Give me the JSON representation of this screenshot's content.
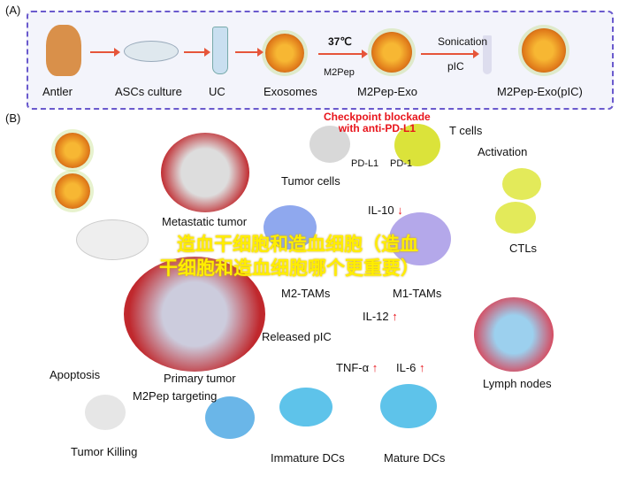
{
  "panel_a": {
    "label": "(A)",
    "steps": [
      "Antler",
      "ASCs culture",
      "UC",
      "Exosomes",
      "M2Pep-Exo",
      "M2Pep-Exo(pIC)"
    ],
    "temp": "37℃",
    "m2pep": "M2Pep",
    "sonication": "Sonication",
    "pic": "pIC"
  },
  "panel_b": {
    "label": "(B)",
    "checkpoint": "Checkpoint blockade\nwith anti-PD-L1",
    "t_cells": "T cells",
    "pdl1": "PD-L1",
    "pd1": "PD-1",
    "tumor_cells": "Tumor cells",
    "activation": "Activation",
    "metastatic": "Metastatic tumor",
    "il10": "IL-10",
    "m2_tams": "M2-TAMs",
    "m1_tams": "M1-TAMs",
    "ctls": "CTLs",
    "il12": "IL-12",
    "released_pic": "Released pIC",
    "primary": "Primary tumor",
    "apoptosis": "Apoptosis",
    "targeting": "M2Pep targeting",
    "tnf": "TNF-α",
    "il6": "IL-6",
    "lymph": "Lymph nodes",
    "tumor_killing": "Tumor Killing",
    "immature": "Immature DCs",
    "mature": "Mature DCs",
    "up": "↑",
    "down": "↓"
  },
  "overlay": {
    "line1": "造血干细胞和造血细胞（造血",
    "line2": "干细胞和造血细胞哪个更重要）"
  },
  "colors": {
    "frame": "#6a5acd",
    "arrow": "#e6553a",
    "overlay": "#ffee00",
    "red": "#e8141b"
  }
}
